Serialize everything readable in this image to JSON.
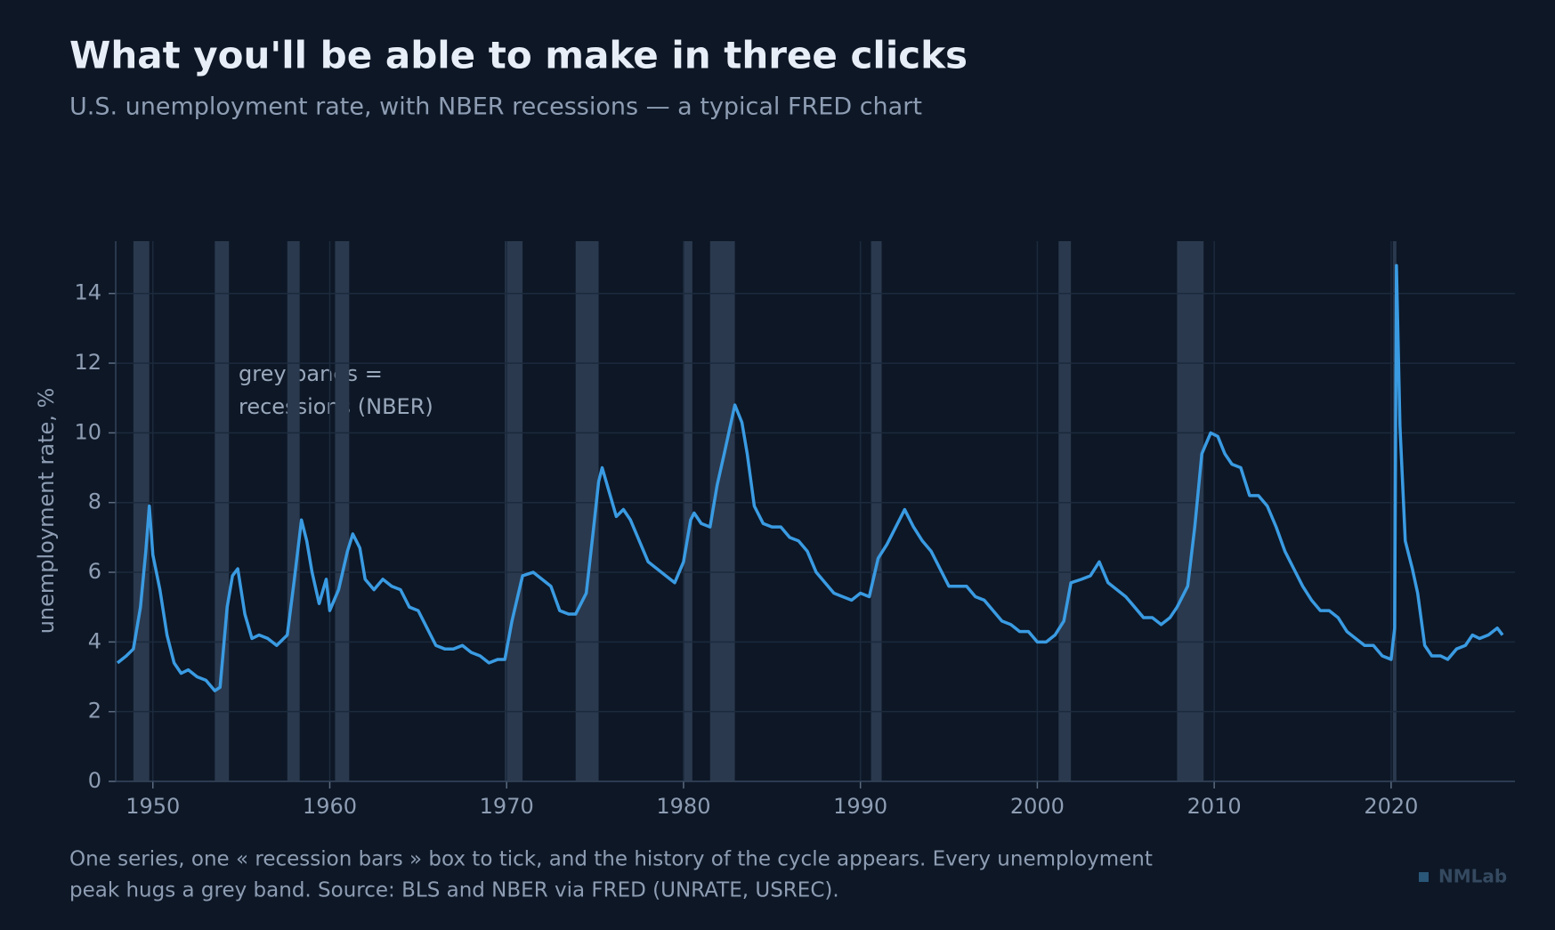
{
  "chart_data": {
    "type": "line",
    "title": "What you'll be able to make in three clicks",
    "subtitle": "U.S. unemployment rate, with NBER recessions — a typical FRED chart",
    "y_label": "unemployment rate, %",
    "annotation": [
      "grey bands =",
      "recessions (NBER)"
    ],
    "note": [
      "One series, one « recession bars » box to tick, and the history of the cycle appears. Every unemployment",
      "peak hugs a grey band. Source: BLS and NBER via FRED (UNRATE, USREC)."
    ],
    "watermark": "NMLab",
    "xlim": [
      1947.9,
      2027.0
    ],
    "ylim": [
      0,
      15.5
    ],
    "xticks": [
      1950,
      1960,
      1970,
      1980,
      1990,
      2000,
      2010,
      2020
    ],
    "yticks": [
      0,
      2,
      4,
      6,
      8,
      10,
      12,
      14
    ],
    "grid": true,
    "recession_color": "#2a394e",
    "recessions": [
      [
        1948.9,
        1949.8
      ],
      [
        1953.5,
        1954.3
      ],
      [
        1957.6,
        1958.3
      ],
      [
        1960.3,
        1961.1
      ],
      [
        1969.9,
        1970.9
      ],
      [
        1973.9,
        1975.2
      ],
      [
        1980.0,
        1980.5
      ],
      [
        1981.5,
        1982.9
      ],
      [
        1990.6,
        1991.2
      ],
      [
        2001.2,
        2001.9
      ],
      [
        2007.9,
        2009.4
      ],
      [
        2020.1,
        2020.3
      ]
    ],
    "series": [
      {
        "name": "UNRATE",
        "color": "#3a9be2",
        "x": [
          1948.0,
          1948.5,
          1948.9,
          1949.3,
          1949.6,
          1949.8,
          1950.0,
          1950.4,
          1950.8,
          1951.2,
          1951.6,
          1952.0,
          1952.5,
          1953.0,
          1953.5,
          1953.8,
          1954.2,
          1954.5,
          1954.8,
          1955.2,
          1955.6,
          1956.0,
          1956.5,
          1957.0,
          1957.6,
          1958.0,
          1958.4,
          1958.7,
          1959.0,
          1959.4,
          1959.8,
          1960.0,
          1960.5,
          1961.0,
          1961.3,
          1961.7,
          1962.0,
          1962.5,
          1963.0,
          1963.5,
          1964.0,
          1964.5,
          1965.0,
          1965.5,
          1966.0,
          1966.5,
          1967.0,
          1967.5,
          1968.0,
          1968.5,
          1969.0,
          1969.5,
          1969.9,
          1970.3,
          1970.9,
          1971.5,
          1972.0,
          1972.5,
          1973.0,
          1973.5,
          1973.9,
          1974.5,
          1974.9,
          1975.2,
          1975.4,
          1975.8,
          1976.2,
          1976.6,
          1977.0,
          1977.5,
          1978.0,
          1978.5,
          1979.0,
          1979.5,
          1980.0,
          1980.4,
          1980.6,
          1981.0,
          1981.5,
          1981.9,
          1982.3,
          1982.9,
          1983.3,
          1983.6,
          1984.0,
          1984.5,
          1985.0,
          1985.5,
          1986.0,
          1986.5,
          1987.0,
          1987.5,
          1988.0,
          1988.5,
          1989.0,
          1989.5,
          1990.0,
          1990.5,
          1991.0,
          1991.5,
          1992.0,
          1992.5,
          1993.0,
          1993.5,
          1994.0,
          1994.5,
          1995.0,
          1995.5,
          1996.0,
          1996.5,
          1997.0,
          1997.5,
          1998.0,
          1998.5,
          1999.0,
          1999.5,
          2000.0,
          2000.5,
          2001.0,
          2001.5,
          2001.9,
          2002.5,
          2003.0,
          2003.5,
          2004.0,
          2004.5,
          2005.0,
          2005.5,
          2006.0,
          2006.5,
          2007.0,
          2007.5,
          2007.9,
          2008.5,
          2008.9,
          2009.3,
          2009.8,
          2010.2,
          2010.6,
          2011.0,
          2011.5,
          2012.0,
          2012.5,
          2013.0,
          2013.5,
          2014.0,
          2014.5,
          2015.0,
          2015.5,
          2016.0,
          2016.5,
          2017.0,
          2017.5,
          2018.0,
          2018.5,
          2019.0,
          2019.5,
          2020.0,
          2020.2,
          2020.3,
          2020.5,
          2020.8,
          2021.2,
          2021.5,
          2021.9,
          2022.3,
          2022.8,
          2023.2,
          2023.7,
          2024.2,
          2024.6,
          2025.0,
          2025.5,
          2026.0,
          2026.3
        ],
        "values": [
          3.4,
          3.6,
          3.8,
          5.0,
          6.6,
          7.9,
          6.5,
          5.5,
          4.2,
          3.4,
          3.1,
          3.2,
          3.0,
          2.9,
          2.6,
          2.7,
          5.0,
          5.9,
          6.1,
          4.8,
          4.1,
          4.2,
          4.1,
          3.9,
          4.2,
          5.8,
          7.5,
          6.9,
          6.0,
          5.1,
          5.8,
          4.9,
          5.5,
          6.6,
          7.1,
          6.7,
          5.8,
          5.5,
          5.8,
          5.6,
          5.5,
          5.0,
          4.9,
          4.4,
          3.9,
          3.8,
          3.8,
          3.9,
          3.7,
          3.6,
          3.4,
          3.5,
          3.5,
          4.6,
          5.9,
          6.0,
          5.8,
          5.6,
          4.9,
          4.8,
          4.8,
          5.4,
          7.2,
          8.6,
          9.0,
          8.3,
          7.6,
          7.8,
          7.5,
          6.9,
          6.3,
          6.1,
          5.9,
          5.7,
          6.3,
          7.5,
          7.7,
          7.4,
          7.3,
          8.5,
          9.4,
          10.8,
          10.3,
          9.4,
          7.9,
          7.4,
          7.3,
          7.3,
          7.0,
          6.9,
          6.6,
          6.0,
          5.7,
          5.4,
          5.3,
          5.2,
          5.4,
          5.3,
          6.4,
          6.8,
          7.3,
          7.8,
          7.3,
          6.9,
          6.6,
          6.1,
          5.6,
          5.6,
          5.6,
          5.3,
          5.2,
          4.9,
          4.6,
          4.5,
          4.3,
          4.3,
          4.0,
          4.0,
          4.2,
          4.6,
          5.7,
          5.8,
          5.9,
          6.3,
          5.7,
          5.5,
          5.3,
          5.0,
          4.7,
          4.7,
          4.5,
          4.7,
          5.0,
          5.6,
          7.3,
          9.4,
          10.0,
          9.9,
          9.4,
          9.1,
          9.0,
          8.2,
          8.2,
          7.9,
          7.3,
          6.6,
          6.1,
          5.6,
          5.2,
          4.9,
          4.9,
          4.7,
          4.3,
          4.1,
          3.9,
          3.9,
          3.6,
          3.5,
          4.4,
          14.8,
          10.2,
          6.9,
          6.1,
          5.4,
          3.9,
          3.6,
          3.6,
          3.5,
          3.8,
          3.9,
          4.2,
          4.1,
          4.2,
          4.4,
          4.2
        ]
      }
    ]
  }
}
